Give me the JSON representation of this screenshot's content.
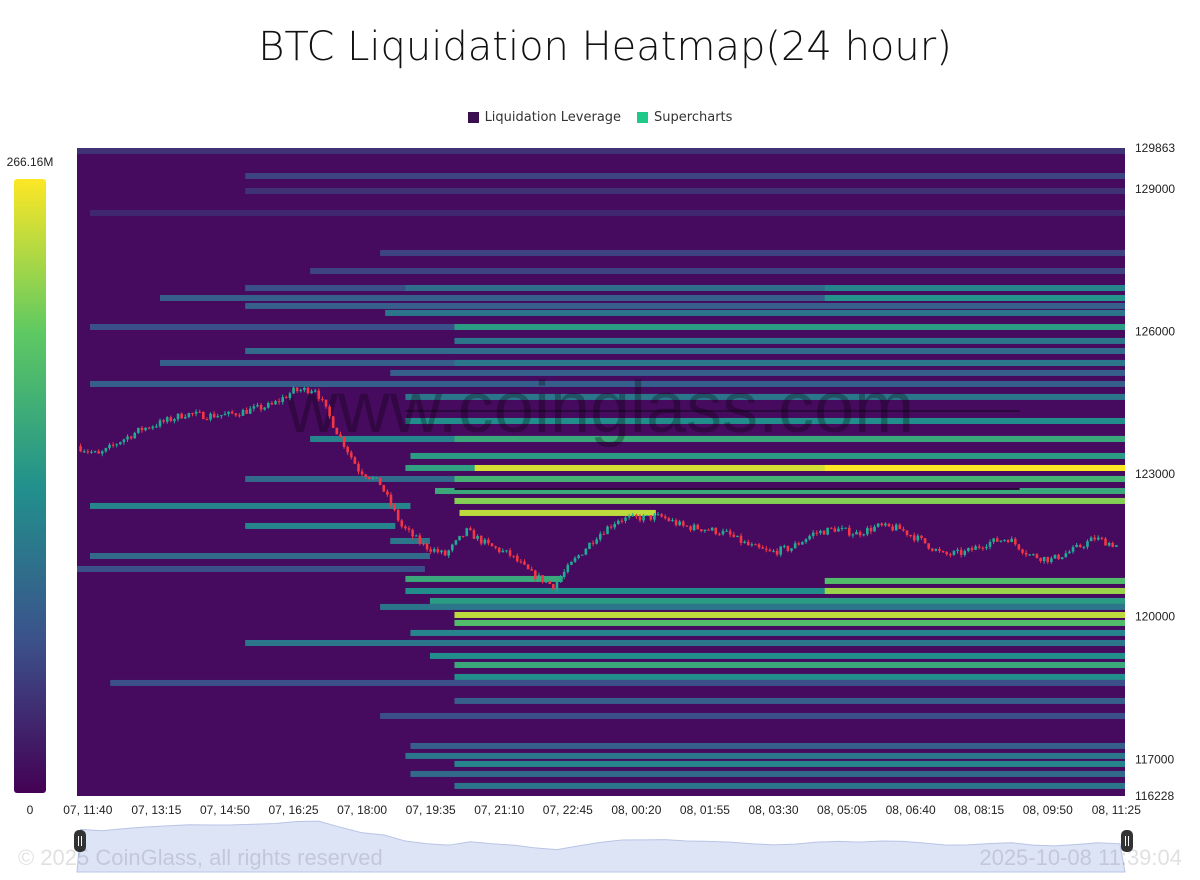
{
  "chart_data": {
    "type": "heatmap",
    "title": "BTC Liquidation Heatmap(24 hour)",
    "legend": [
      {
        "name": "Liquidation Leverage",
        "color": "#3b0f4f"
      },
      {
        "name": "Supercharts",
        "color": "#1fc98a"
      }
    ],
    "legend_position": "top-center",
    "colorbar": {
      "max_label": "266.16M",
      "min_label": "0",
      "max": 266.16,
      "min": 0,
      "colorscale": "viridis"
    },
    "x_range": [
      "07, 11:25",
      "08, 11:37"
    ],
    "x_ticks": [
      "07, 11:40",
      "07, 13:15",
      "07, 14:50",
      "07, 16:25",
      "07, 18:00",
      "07, 19:35",
      "07, 21:10",
      "07, 22:45",
      "08, 00:20",
      "08, 01:55",
      "08, 03:30",
      "08, 05:05",
      "08, 06:40",
      "08, 08:15",
      "08, 09:50",
      "08, 11:25"
    ],
    "y_range": [
      116228,
      129863
    ],
    "y_ticks": [
      "129863",
      "129000",
      "126000",
      "123000",
      "120000",
      "117000",
      "116228"
    ],
    "bands_note_units": "price USD, start/end time, value in M",
    "bands": [
      {
        "price": 129800,
        "start": "07, 11:25",
        "value": 40
      },
      {
        "price": 129274,
        "start": "07, 15:18",
        "value": 55
      },
      {
        "price": 128958,
        "start": "07, 15:18",
        "value": 40
      },
      {
        "price": 128496,
        "start": "07, 11:43",
        "value": 32
      },
      {
        "price": 127654,
        "start": "07, 18:25",
        "value": 55
      },
      {
        "price": 127275,
        "start": "07, 16:48",
        "value": 55
      },
      {
        "price": 126917,
        "start": "07, 15:18",
        "value": 65
      },
      {
        "price": 126917,
        "start": "07, 19:00",
        "value": 95
      },
      {
        "price": 126917,
        "start": "08, 04:41",
        "value": 120
      },
      {
        "price": 126707,
        "start": "07, 13:20",
        "value": 80
      },
      {
        "price": 126707,
        "start": "08, 04:41",
        "value": 135
      },
      {
        "price": 126539,
        "start": "07, 15:18",
        "value": 80
      },
      {
        "price": 126392,
        "start": "07, 18:32",
        "value": 105
      },
      {
        "price": 126097,
        "start": "07, 11:43",
        "value": 65
      },
      {
        "price": 126097,
        "start": "07, 20:08",
        "value": 145
      },
      {
        "price": 125803,
        "start": "07, 20:08",
        "value": 105
      },
      {
        "price": 125592,
        "start": "07, 15:18",
        "value": 92
      },
      {
        "price": 125340,
        "start": "07, 13:20",
        "value": 80
      },
      {
        "price": 125340,
        "start": "07, 20:08",
        "value": 105
      },
      {
        "price": 125130,
        "start": "07, 18:39",
        "value": 80
      },
      {
        "price": 124898,
        "start": "07, 11:43",
        "value": 80
      },
      {
        "price": 124625,
        "start": "07, 19:00",
        "value": 105
      },
      {
        "price": 124288,
        "start": "07, 19:00",
        "end": "08, 09:11",
        "value": 15
      },
      {
        "price": 124119,
        "start": "07, 19:00",
        "value": 130
      },
      {
        "price": 123741,
        "start": "07, 16:48",
        "value": 120
      },
      {
        "price": 123741,
        "start": "07, 20:08",
        "value": 160
      },
      {
        "price": 123383,
        "start": "07, 19:07",
        "value": 145
      },
      {
        "price": 123130,
        "start": "07, 19:00",
        "value": 150
      },
      {
        "price": 123130,
        "start": "07, 20:36",
        "value": 250
      },
      {
        "price": 123130,
        "start": "08, 04:41",
        "value": 266
      },
      {
        "price": 122899,
        "start": "07, 15:18",
        "value": 92
      },
      {
        "price": 122899,
        "start": "07, 20:08",
        "value": 172
      },
      {
        "price": 122646,
        "start": "07, 19:41",
        "value": 160
      },
      {
        "price": 122646,
        "start": "07, 20:08",
        "end": "08, 09:11",
        "value": 12
      },
      {
        "price": 122436,
        "start": "07, 20:08",
        "value": 215
      },
      {
        "price": 122331,
        "start": "07, 11:43",
        "end": "07, 19:07",
        "value": 120
      },
      {
        "price": 122184,
        "start": "07, 20:15",
        "end": "08, 00:47",
        "value": 240
      },
      {
        "price": 121910,
        "start": "07, 15:18",
        "end": "07, 18:46",
        "value": 120
      },
      {
        "price": 121594,
        "start": "07, 18:39",
        "end": "07, 19:34",
        "value": 105
      },
      {
        "price": 121278,
        "start": "07, 11:43",
        "end": "07, 19:34",
        "value": 92
      },
      {
        "price": 121005,
        "start": "07, 11:25",
        "end": "07, 19:27",
        "value": 65
      },
      {
        "price": 120795,
        "start": "07, 19:00",
        "end": "07, 22:38",
        "value": 160
      },
      {
        "price": 120753,
        "start": "08, 04:41",
        "value": 185
      },
      {
        "price": 120542,
        "start": "07, 19:00",
        "value": 130
      },
      {
        "price": 120542,
        "start": "08, 04:41",
        "value": 225
      },
      {
        "price": 120332,
        "start": "07, 19:34",
        "value": 145
      },
      {
        "price": 120206,
        "start": "07, 18:25",
        "value": 105
      },
      {
        "price": 120037,
        "start": "07, 20:08",
        "value": 240
      },
      {
        "price": 119869,
        "start": "07, 20:08",
        "value": 185
      },
      {
        "price": 119659,
        "start": "07, 19:07",
        "value": 120
      },
      {
        "price": 119448,
        "start": "07, 15:18",
        "value": 105
      },
      {
        "price": 119175,
        "start": "07, 19:34",
        "value": 130
      },
      {
        "price": 118985,
        "start": "07, 20:08",
        "value": 160
      },
      {
        "price": 118733,
        "start": "07, 20:08",
        "value": 130
      },
      {
        "price": 118607,
        "start": "07, 12:11",
        "value": 65
      },
      {
        "price": 118228,
        "start": "07, 20:08",
        "value": 80
      },
      {
        "price": 117912,
        "start": "07, 18:25",
        "value": 65
      },
      {
        "price": 117281,
        "start": "07, 19:07",
        "value": 80
      },
      {
        "price": 117071,
        "start": "07, 19:00",
        "value": 105
      },
      {
        "price": 116903,
        "start": "07, 20:08",
        "value": 120
      },
      {
        "price": 116692,
        "start": "07, 19:07",
        "value": 92
      },
      {
        "price": 116440,
        "start": "07, 20:08",
        "value": 105
      }
    ],
    "price_series": {
      "interval": "30m",
      "start": "07, 11:30",
      "close": [
        123590,
        123400,
        123700,
        123950,
        124100,
        124270,
        124230,
        124250,
        124350,
        124450,
        124750,
        124800,
        123900,
        123100,
        122800,
        121900,
        121500,
        121300,
        121800,
        121500,
        121300,
        120900,
        120650,
        121200,
        121700,
        122050,
        122080,
        122100,
        121900,
        121850,
        121750,
        121500,
        121350,
        121450,
        121750,
        121850,
        121750,
        121900,
        121850,
        121600,
        121300,
        121350,
        121550,
        121650,
        121300,
        121200,
        121400,
        121650,
        121500
      ]
    }
  },
  "watermark": "www.coinglass.com",
  "copyright": "© 2025 CoinGlass, all rights reserved",
  "timestamp": "2025-10-08 11:39:04"
}
